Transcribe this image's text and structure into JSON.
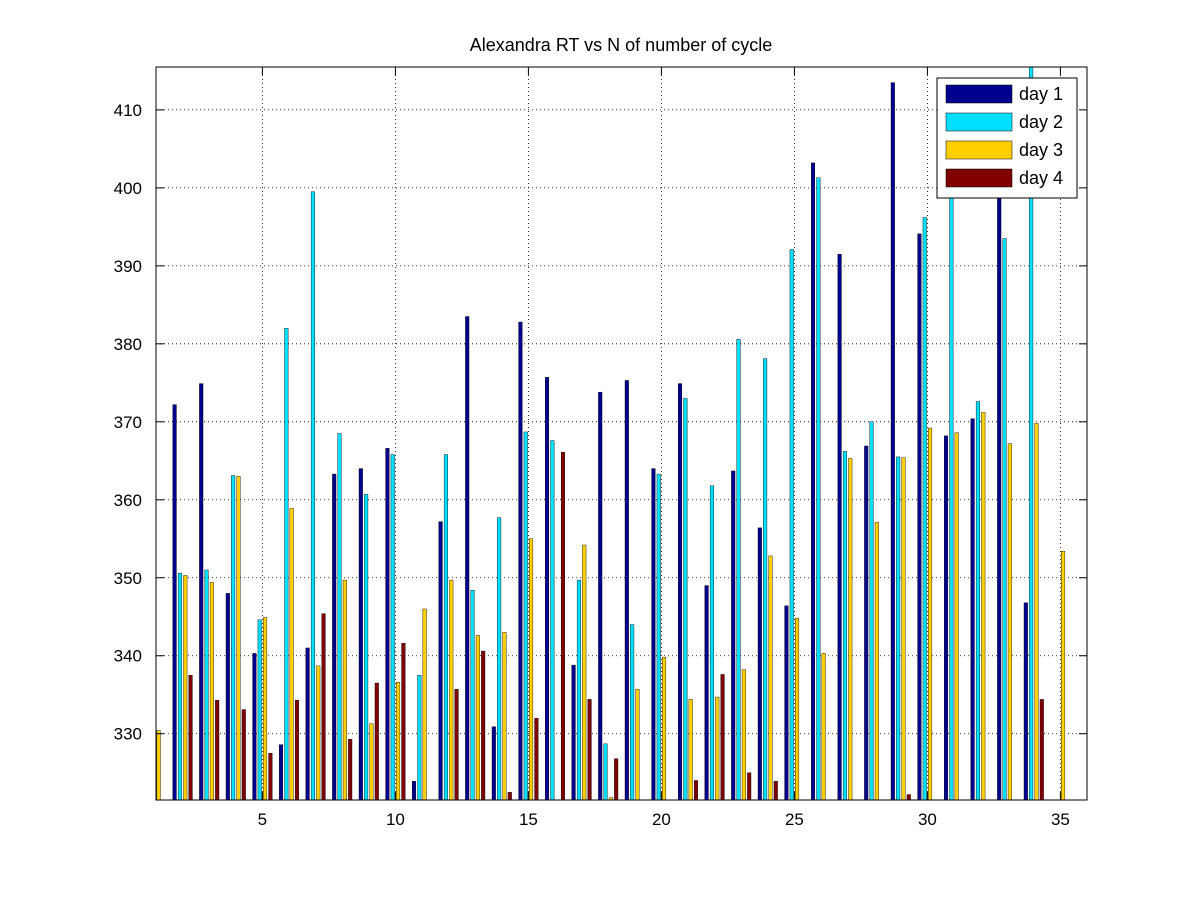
{
  "chart_data": {
    "type": "bar",
    "title": "Alexandra RT vs N of number of cycle",
    "xlabel": "",
    "ylabel": "",
    "xlim": [
      1,
      36
    ],
    "ylim": [
      321.5,
      415.5
    ],
    "xticks": [
      5,
      10,
      15,
      20,
      25,
      30,
      35
    ],
    "yticks": [
      330,
      340,
      350,
      360,
      370,
      380,
      390,
      400,
      410
    ],
    "grid": true,
    "legend_position": "top-right",
    "categories": [
      1,
      2,
      3,
      4,
      5,
      6,
      7,
      8,
      9,
      10,
      11,
      12,
      13,
      14,
      15,
      16,
      17,
      18,
      19,
      20,
      21,
      22,
      23,
      24,
      25,
      26,
      27,
      28,
      29,
      30,
      31,
      32,
      33,
      34,
      35
    ],
    "series": [
      {
        "name": "day 1",
        "color": "#00008f",
        "values": [
          null,
          372.2,
          374.9,
          348.0,
          340.3,
          328.6,
          341.0,
          363.3,
          364.0,
          366.6,
          323.9,
          357.2,
          383.5,
          330.9,
          382.8,
          375.7,
          338.8,
          373.8,
          375.3,
          364.0,
          374.9,
          349.0,
          363.7,
          356.4,
          346.4,
          403.2,
          391.5,
          366.9,
          413.5,
          394.1,
          368.2,
          370.4,
          400.0,
          346.8,
          null
        ]
      },
      {
        "name": "day 2",
        "color": "#00dfff",
        "values": [
          null,
          350.6,
          351.0,
          363.1,
          344.6,
          382.0,
          399.5,
          368.5,
          360.7,
          365.8,
          337.5,
          365.8,
          348.4,
          357.7,
          368.7,
          367.6,
          349.7,
          328.7,
          344.0,
          363.3,
          373.0,
          361.8,
          380.6,
          378.1,
          392.1,
          401.3,
          366.2,
          370.0,
          365.5,
          396.2,
          400.0,
          372.6,
          393.5,
          416.0,
          null
        ]
      },
      {
        "name": "day 3",
        "color": "#ffcf00",
        "values": [
          330.4,
          350.3,
          349.4,
          363.0,
          344.9,
          358.9,
          338.7,
          349.7,
          331.3,
          336.6,
          346.0,
          349.7,
          342.6,
          343.0,
          355.0,
          321.0,
          354.2,
          321.8,
          335.7,
          339.8,
          334.4,
          334.7,
          338.2,
          352.8,
          344.8,
          340.3,
          365.3,
          357.1,
          365.4,
          369.2,
          368.6,
          371.2,
          367.2,
          369.8,
          353.4
        ]
      },
      {
        "name": "day 4",
        "color": "#800000",
        "values": [
          null,
          337.5,
          334.3,
          333.1,
          327.5,
          334.3,
          345.4,
          329.3,
          336.5,
          341.6,
          null,
          335.7,
          340.6,
          322.5,
          332.0,
          366.1,
          334.4,
          326.8,
          null,
          null,
          324.0,
          337.6,
          325.0,
          323.9,
          null,
          null,
          null,
          null,
          322.2,
          null,
          null,
          null,
          null,
          334.4,
          null
        ]
      }
    ]
  }
}
